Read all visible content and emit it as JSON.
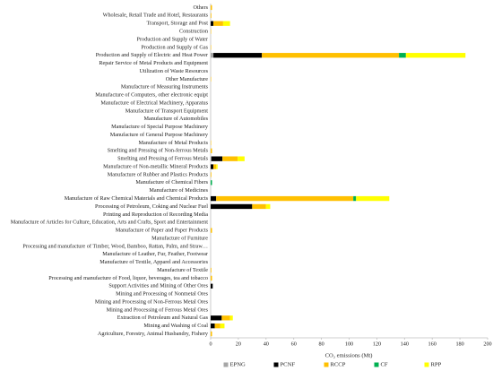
{
  "chart_data": {
    "type": "stacked-bar-horizontal",
    "x_label": "CO₂ emissions (Mt)",
    "categories": [
      "Others",
      "Wholesale, Retail Trade and Hotel, Restaurants",
      "Transport, Storage and Post",
      "Construction",
      "Production and Supply of Water",
      "Production and Supply of Gas",
      "Production and Supply of Electric and Heat Power",
      "Repair Service of Metal Products and Equipment",
      "Utilization of Waste Resources",
      "Other Manufacture",
      "Manufacture of Measuring Instruments",
      "Manufacture of Computers, other electronic equipt",
      "Manufacture of Electrical Machinery, Apparatus",
      "Manufacture of Transport Equipment",
      "Manufacture of Automobiles",
      "Manufacture of Special Purpose Machinery",
      "Manufacture of General Purpose Machinery",
      "Manufacture of Metal Products",
      "Smelting and Pressing of Non-ferrous Metals",
      "Smelting and Pressing of Ferrous Metals",
      "Manufacture of Non-metallic Mineral Products",
      "Manufacture of Rubber and Plastics Products",
      "Manufacture of Chemical Fibers",
      "Manufacture of Medicines",
      "Manufacture of Raw Chemical Materials and Chemical Products",
      "Processing of Petroleum, Coking and Nuclear Fuel",
      "Printing and Reproduction of Recording Media",
      "Manufacture of Articles for Culture, Education, Arts and Crafts, Sport and Entertainment",
      "Manufacture of Paper and Paper Products",
      "Manufacture of Furniture",
      "Processing and manufacture of Timber, Wood, Bamboo, Rattan, Palm, and Straw…",
      "Manufacture of Leather, Fur, Feather, Footwear",
      "Manufacture of Textile, Apparel and Accessories",
      "Manufacture of Textile",
      "Processing and manufacture of Food, liquor, beverages, tea and tobacco",
      "Support Activities and Mining of Other Ores",
      "Mining and Processing of Nonmetal Ores",
      "Mining and Processing of Non-Ferrous Metal Ores",
      "Mining and Processing of Ferrous Metal Ores",
      "Extraction of Petroleum and Natural Gas",
      "Mining and Washing of Coal",
      "Agriculture, Forestry, Animal Husbandry, Fishery"
    ],
    "series": [
      {
        "name": "EPNG",
        "color": "#a6a6a6",
        "values": [
          0,
          0,
          0,
          0,
          0,
          0,
          2,
          0,
          0,
          0,
          0,
          0,
          0,
          0,
          0,
          0,
          0,
          0,
          0,
          0.5,
          0,
          0,
          0,
          0,
          0,
          0,
          0,
          0,
          0,
          0,
          0,
          0,
          0,
          0,
          0,
          0,
          0,
          0,
          0,
          0,
          0,
          0
        ]
      },
      {
        "name": "PCNF",
        "color": "#000000",
        "values": [
          0,
          0,
          2,
          0,
          0,
          0,
          35,
          0,
          0,
          0,
          0,
          0,
          0,
          0,
          0,
          0,
          0,
          0,
          0,
          8,
          2,
          0,
          0,
          0,
          4,
          30,
          0,
          0,
          0,
          0,
          0,
          0,
          0,
          0,
          0,
          1.5,
          0,
          0,
          0,
          8,
          3,
          0
        ]
      },
      {
        "name": "RCCP",
        "color": "#ffc000",
        "values": [
          1,
          0.5,
          7,
          0.3,
          0,
          0.3,
          99,
          0,
          0,
          0.3,
          0,
          0,
          0,
          0,
          0,
          0,
          0,
          0.3,
          1,
          11,
          2,
          0.5,
          0,
          0,
          99,
          10,
          0,
          0,
          1,
          0,
          0,
          0,
          0,
          0.5,
          1,
          0,
          0,
          0,
          0,
          6,
          4,
          1
        ]
      },
      {
        "name": "CF",
        "color": "#00b050",
        "values": [
          0,
          0,
          0,
          0,
          0,
          0,
          5,
          0,
          0,
          0,
          0,
          0,
          0,
          0,
          0,
          0,
          0,
          0,
          0,
          0,
          0,
          0,
          1,
          0,
          2,
          0,
          0,
          0,
          0,
          0,
          0,
          0,
          0,
          0,
          0,
          0,
          0,
          0,
          0,
          0,
          0,
          0
        ]
      },
      {
        "name": "RPP",
        "color": "#ffff00",
        "values": [
          0,
          0,
          5,
          0,
          0,
          0,
          43,
          0,
          0,
          0,
          0,
          0,
          0,
          0,
          0,
          0,
          0,
          0,
          0,
          5,
          1,
          0,
          0,
          0,
          24,
          3,
          0,
          0,
          0,
          0,
          0,
          0,
          0,
          0,
          0,
          0,
          0,
          0,
          0,
          2,
          3,
          0
        ]
      }
    ],
    "xlim": [
      0,
      200
    ],
    "xticks": [
      0,
      20,
      40,
      60,
      80,
      100,
      120,
      140,
      160,
      180,
      200
    ],
    "legend": "bottom"
  }
}
